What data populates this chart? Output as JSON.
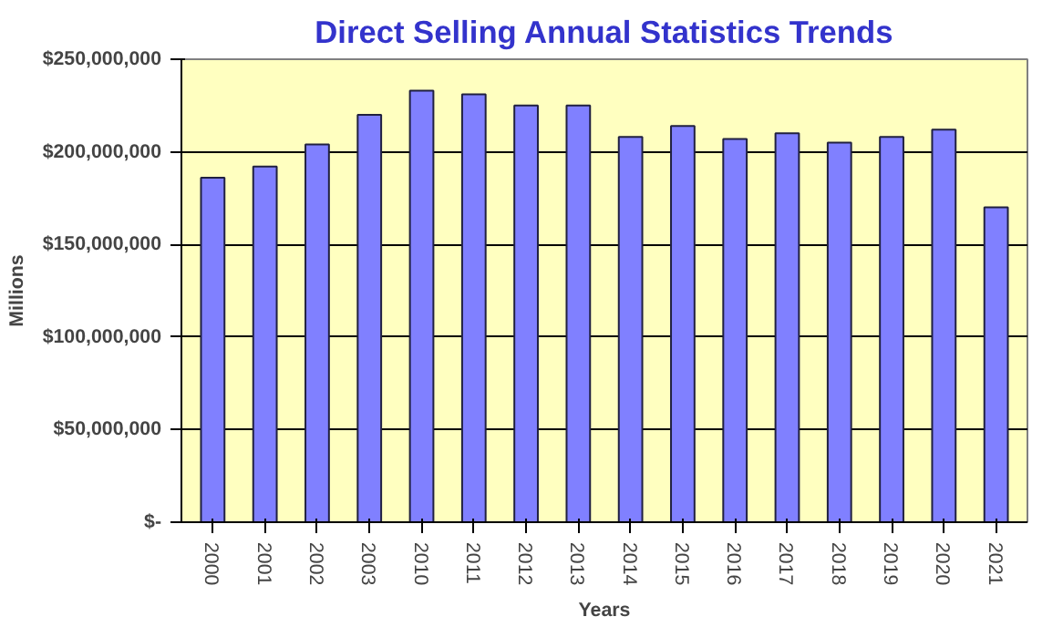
{
  "chart_data": {
    "type": "bar",
    "title": "Direct Selling Annual Statistics Trends",
    "xlabel": "Years",
    "ylabel": "Millions",
    "categories": [
      "2000",
      "2001",
      "2002",
      "2003",
      "2010",
      "2011",
      "2012",
      "2013",
      "2014",
      "2015",
      "2016",
      "2017",
      "2018",
      "2019",
      "2020",
      "2021"
    ],
    "values": [
      186000000,
      192000000,
      204000000,
      220000000,
      233000000,
      231000000,
      225000000,
      225000000,
      208000000,
      214000000,
      207000000,
      210000000,
      205000000,
      208000000,
      212000000,
      170000000
    ],
    "color": "#8080ff",
    "ylim": [
      0,
      250000000
    ],
    "yticks": [
      {
        "value": 0,
        "label": "$-"
      },
      {
        "value": 50000000,
        "label": "$50,000,000"
      },
      {
        "value": 100000000,
        "label": "$100,000,000"
      },
      {
        "value": 150000000,
        "label": "$150,000,000"
      },
      {
        "value": 200000000,
        "label": "$200,000,000"
      },
      {
        "value": 250000000,
        "label": "$250,000,000"
      }
    ],
    "grid": "y"
  }
}
